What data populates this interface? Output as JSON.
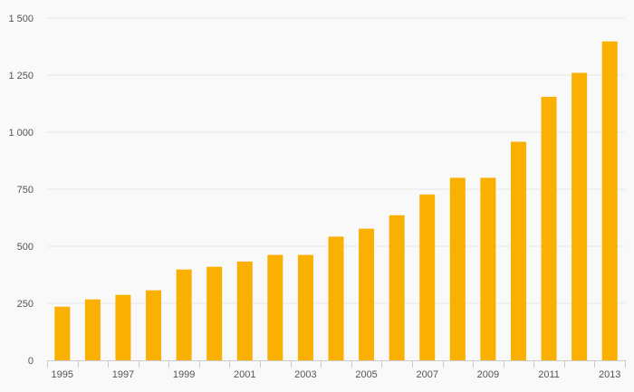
{
  "chart_data": {
    "type": "bar",
    "title": "",
    "xlabel": "",
    "ylabel": "",
    "categories": [
      "1995",
      "1996",
      "1997",
      "1998",
      "1999",
      "2000",
      "2001",
      "2002",
      "2003",
      "2004",
      "2005",
      "2006",
      "2007",
      "2008",
      "2009",
      "2010",
      "2011",
      "2012",
      "2013"
    ],
    "values": [
      235,
      267,
      287,
      307,
      398,
      410,
      433,
      462,
      462,
      542,
      577,
      636,
      727,
      800,
      800,
      958,
      1155,
      1260,
      1398
    ],
    "x_tick_labels": [
      "1995",
      "",
      "1997",
      "",
      "1999",
      "",
      "2001",
      "",
      "2003",
      "",
      "2005",
      "",
      "2007",
      "",
      "2009",
      "",
      "2011",
      "",
      "2013"
    ],
    "y_ticks": [
      {
        "value": 0,
        "label": "0"
      },
      {
        "value": 250,
        "label": "250"
      },
      {
        "value": 500,
        "label": "500"
      },
      {
        "value": 750,
        "label": "750"
      },
      {
        "value": 1000,
        "label": "1 000"
      },
      {
        "value": 1250,
        "label": "1 250"
      },
      {
        "value": 1500,
        "label": "1 500"
      }
    ],
    "ylim": [
      0,
      1500
    ],
    "grid": true,
    "legend": "none",
    "colors": {
      "bar": "#f9b000",
      "grid": "#e6e6e6",
      "axis": "#cccccc",
      "text": "#555555",
      "background": "#f9f9f9"
    }
  }
}
